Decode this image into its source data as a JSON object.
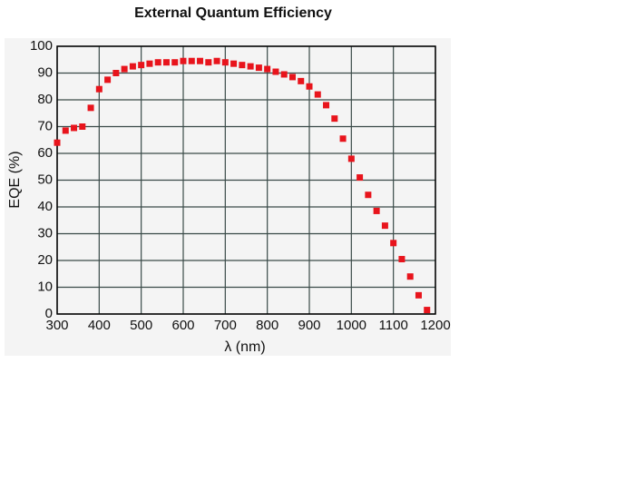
{
  "chart_data": {
    "type": "scatter",
    "title": "External Quantum Efficiency",
    "x_label": "λ (nm)",
    "y_label": "EQE (%)",
    "x": [
      300,
      320,
      340,
      360,
      380,
      400,
      420,
      440,
      460,
      480,
      500,
      520,
      540,
      560,
      580,
      600,
      620,
      640,
      660,
      680,
      700,
      720,
      740,
      760,
      780,
      800,
      820,
      840,
      860,
      880,
      900,
      920,
      940,
      960,
      980,
      1000,
      1020,
      1040,
      1060,
      1080,
      1100,
      1120,
      1140,
      1160,
      1180
    ],
    "values": [
      64,
      68.5,
      69.5,
      70,
      77,
      84,
      87.5,
      90,
      91.5,
      92.5,
      93,
      93.5,
      94,
      94,
      94,
      94.5,
      94.5,
      94.5,
      94,
      94.5,
      94,
      93.5,
      93,
      92.5,
      92,
      91.5,
      90.5,
      89.5,
      88.5,
      87,
      85,
      82,
      78,
      73,
      65.5,
      58,
      51,
      44.5,
      38.5,
      33,
      26.5,
      20.5,
      14,
      7,
      1.5
    ],
    "color": "#e8141c",
    "xlim": [
      300,
      1200
    ],
    "xticks": [
      300,
      400,
      500,
      600,
      700,
      800,
      900,
      1000,
      1100,
      1200
    ],
    "ylim": [
      0,
      100
    ],
    "yticks": [
      0,
      10,
      20,
      30,
      40,
      50,
      60,
      70,
      80,
      90,
      100
    ],
    "grid": true
  }
}
